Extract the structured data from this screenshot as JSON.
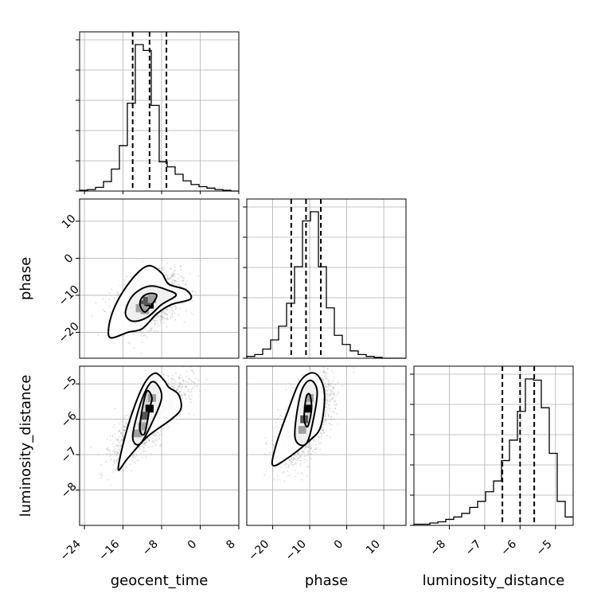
{
  "chart_data": {
    "type": "corner",
    "parameters": [
      "geocent_time",
      "phase",
      "luminosity_distance"
    ],
    "ranges": {
      "geocent_time": [
        -25,
        8
      ],
      "phase": [
        -27,
        16
      ],
      "luminosity_distance": [
        -9.0,
        -4.5
      ]
    },
    "ticks": {
      "geocent_time": [
        -24,
        -16,
        -8,
        0,
        8
      ],
      "phase_x": [
        -20,
        -10,
        0,
        10
      ],
      "phase_y": [
        10,
        0,
        -10,
        -20
      ],
      "luminosity_distance_x": [
        -8,
        -7,
        -6,
        -5
      ],
      "luminosity_distance_y": [
        -5,
        -6,
        -7,
        -8
      ]
    },
    "tick_labels": {
      "geocent_time": [
        "−24",
        "−16",
        "−8",
        "0",
        "8"
      ],
      "phase_x": [
        "−20",
        "−10",
        "0",
        "10"
      ],
      "phase_y": [
        "10",
        "0",
        "−10",
        "−20"
      ],
      "luminosity_distance_x": [
        "−8",
        "−7",
        "−6",
        "−5"
      ],
      "luminosity_distance_y": [
        "−5",
        "−6",
        "−7",
        "−8"
      ]
    },
    "quantiles": {
      "geocent_time": [
        -14,
        -10.5,
        -7
      ],
      "phase": [
        -15,
        -11,
        -7
      ],
      "luminosity_distance": [
        -6.5,
        -6.0,
        -5.6
      ]
    },
    "histograms": {
      "geocent_time": {
        "edges": [
          -25,
          -23.35,
          -21.7,
          -20.05,
          -18.4,
          -16.75,
          -15.1,
          -13.45,
          -11.8,
          -10.15,
          -8.5,
          -6.85,
          -5.2,
          -3.55,
          -1.9,
          -0.25,
          1.4,
          3.05,
          4.7,
          6.35,
          8
        ],
        "counts": [
          1,
          2,
          5,
          13,
          30,
          62,
          120,
          200,
          192,
          117,
          40,
          33,
          23,
          14,
          9,
          6,
          4,
          2,
          1,
          0
        ]
      },
      "phase": {
        "edges": [
          -27,
          -24.85,
          -22.7,
          -20.55,
          -18.4,
          -16.25,
          -14.1,
          -11.95,
          -9.8,
          -7.65,
          -5.5,
          -3.35,
          -1.2,
          0.95,
          3.1,
          5.25,
          7.4,
          9.55,
          11.7,
          13.85,
          16
        ],
        "counts": [
          2,
          4,
          10,
          20,
          35,
          60,
          100,
          150,
          160,
          100,
          55,
          25,
          15,
          8,
          4,
          2,
          1,
          0,
          0,
          0
        ]
      },
      "luminosity_distance": {
        "edges": [
          -9.0,
          -8.775,
          -8.55,
          -8.325,
          -8.1,
          -7.875,
          -7.65,
          -7.425,
          -7.2,
          -6.975,
          -6.75,
          -6.525,
          -6.3,
          -6.075,
          -5.85,
          -5.625,
          -5.4,
          -5.175,
          -4.95,
          -4.725,
          -4.5
        ],
        "counts": [
          1,
          1,
          2,
          3,
          5,
          7,
          10,
          15,
          20,
          28,
          37,
          54,
          71,
          95,
          122,
          121,
          98,
          60,
          20,
          7
        ]
      }
    }
  },
  "labels": {
    "x": [
      "geocent_time",
      "phase",
      "luminosity_distance"
    ],
    "y": [
      "phase",
      "luminosity_distance"
    ]
  }
}
